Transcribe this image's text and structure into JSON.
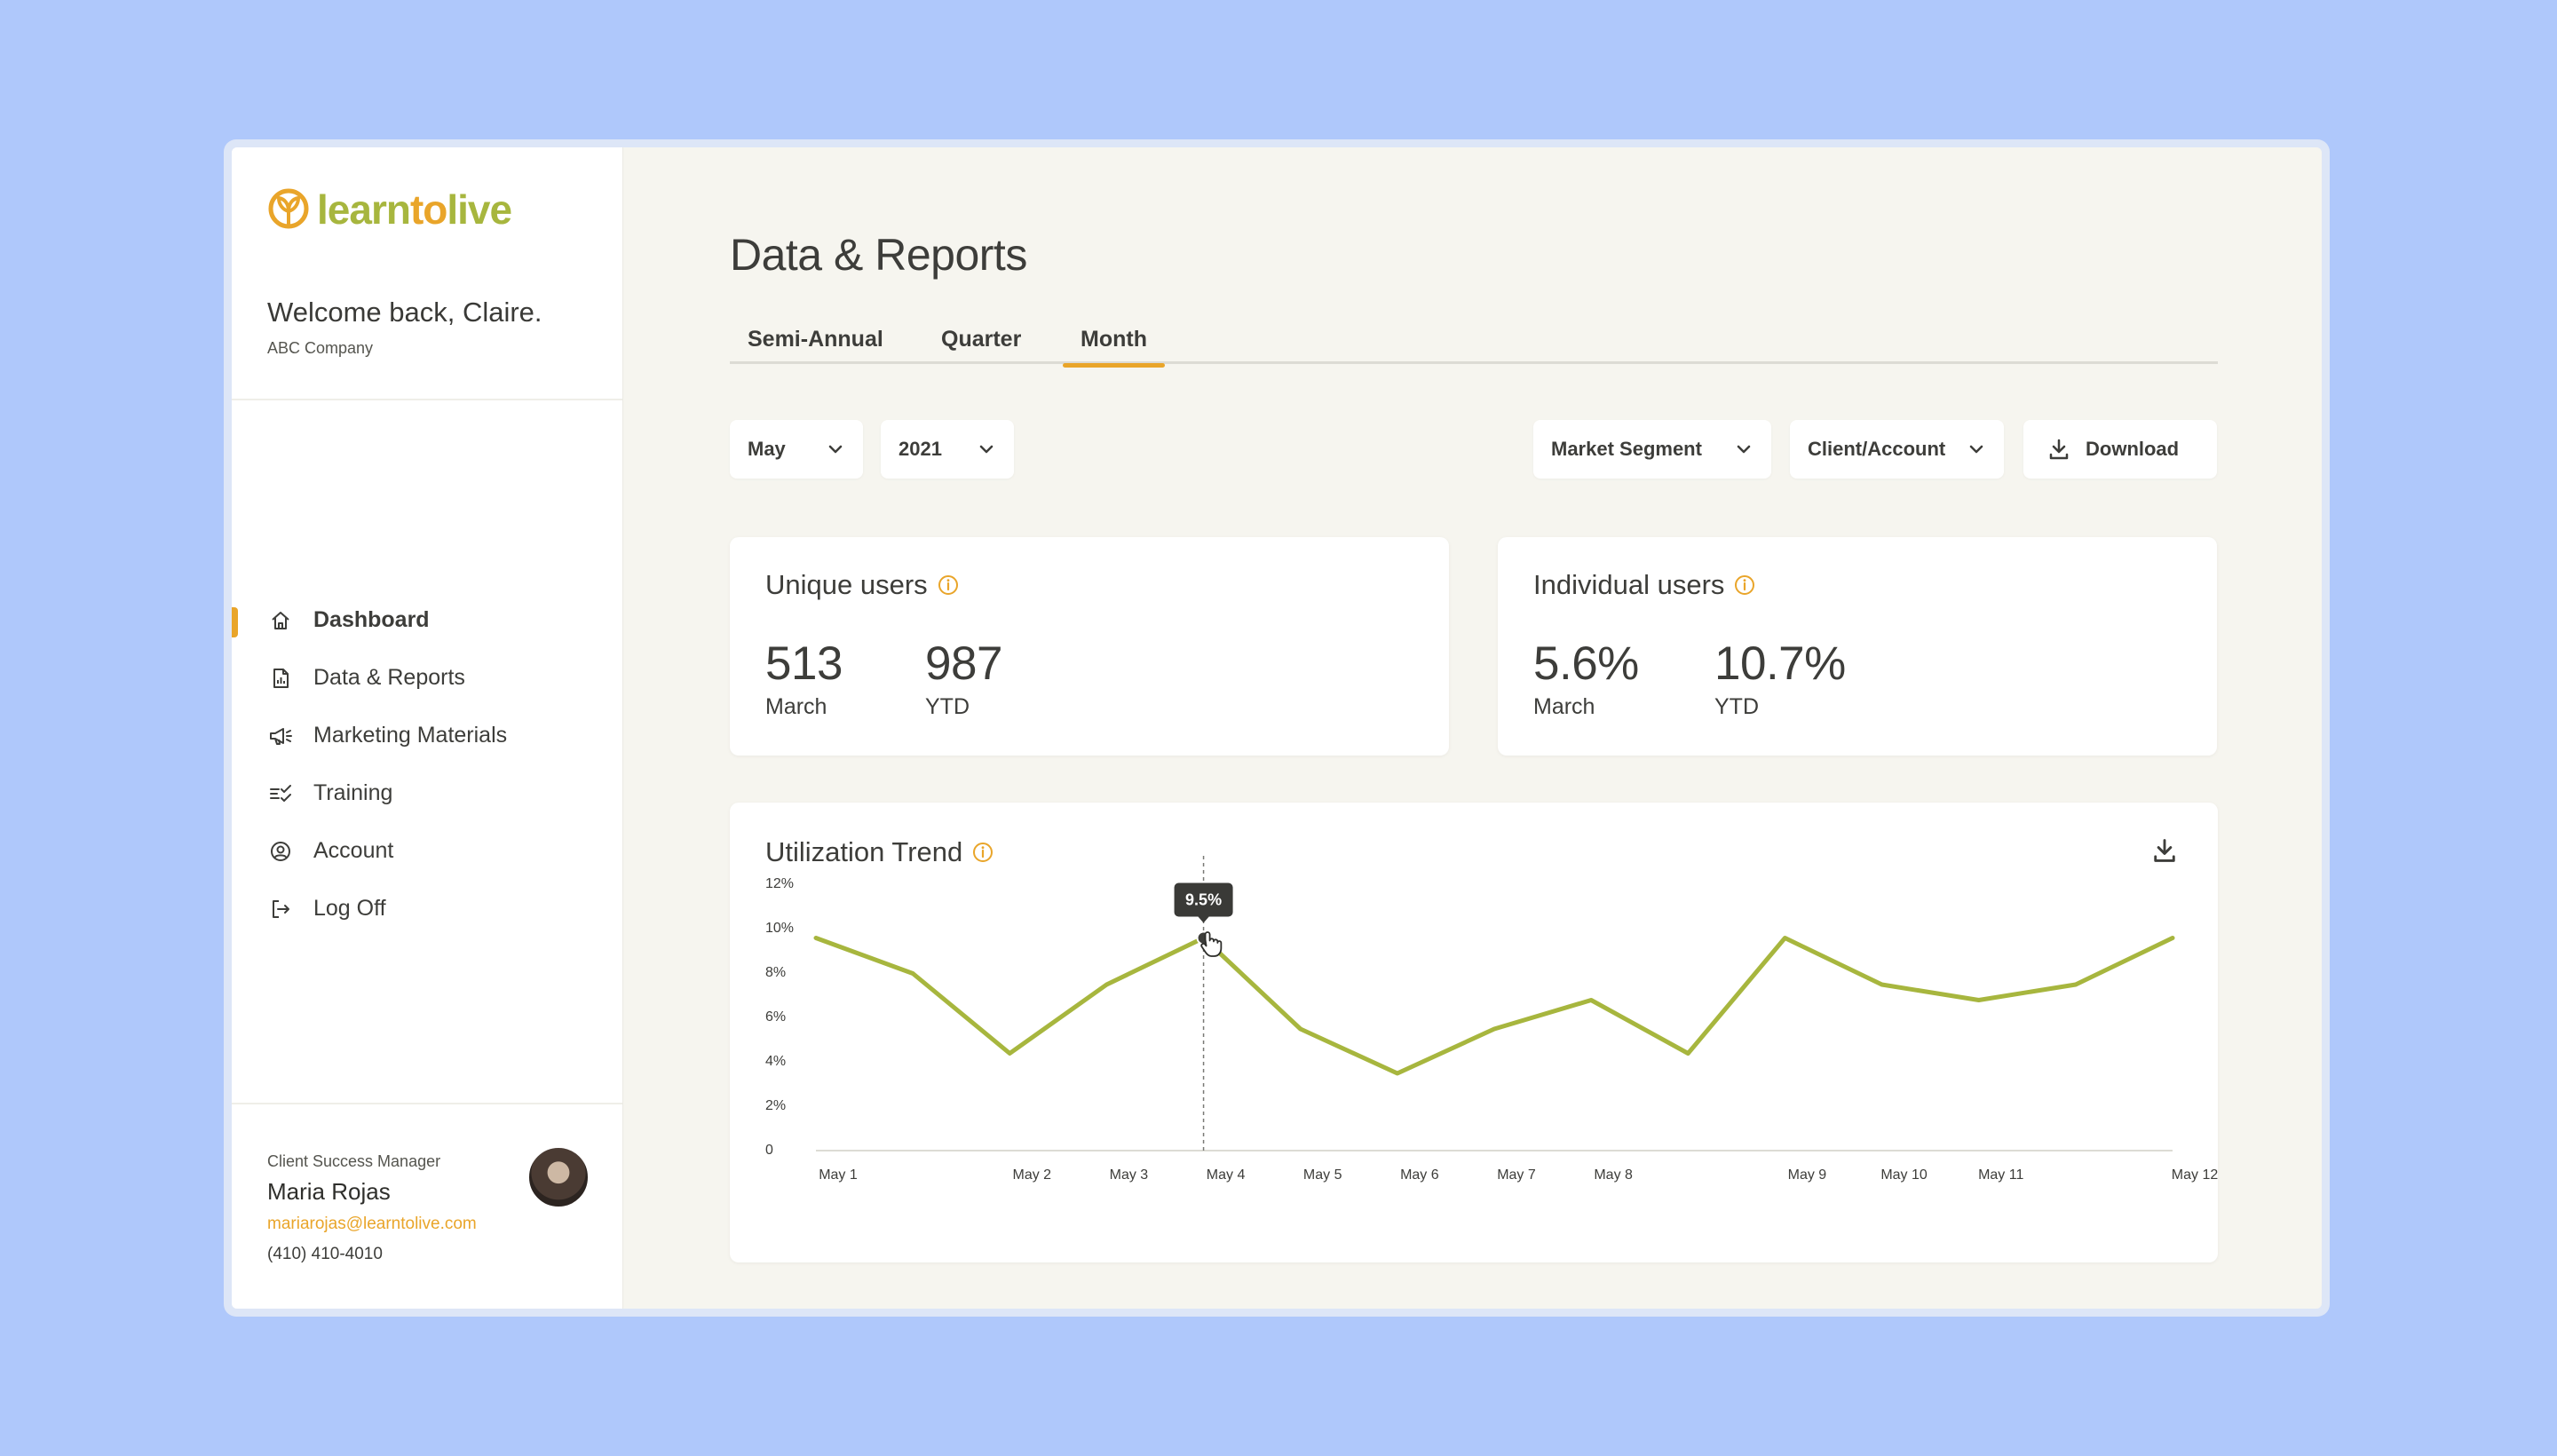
{
  "brand": {
    "name_part1": "learn",
    "name_part2": "to",
    "name_part3": "live",
    "primary_color": "#a7b63e",
    "accent_color": "#e9a52a"
  },
  "welcome": {
    "title": "Welcome back, Claire.",
    "company": "ABC Company"
  },
  "nav": {
    "items": [
      {
        "label": "Dashboard",
        "icon": "home-icon",
        "active": true
      },
      {
        "label": "Data & Reports",
        "icon": "report-icon",
        "active": false
      },
      {
        "label": "Marketing Materials",
        "icon": "megaphone-icon",
        "active": false
      },
      {
        "label": "Training",
        "icon": "checklist-icon",
        "active": false
      },
      {
        "label": "Account",
        "icon": "user-circle-icon",
        "active": false
      },
      {
        "label": "Log Off",
        "icon": "logout-icon",
        "active": false
      }
    ]
  },
  "csm": {
    "role": "Client Success Manager",
    "name": "Maria Rojas",
    "email": "mariarojas@learntolive.com",
    "phone": "(410) 410-4010"
  },
  "page": {
    "title": "Data & Reports",
    "tabs": [
      "Semi-Annual",
      "Quarter",
      "Month"
    ],
    "active_tab": "Month"
  },
  "filters": {
    "month": "May",
    "year": "2021",
    "segment": "Market Segment",
    "client": "Client/Account",
    "download_label": "Download"
  },
  "unique_users": {
    "title": "Unique users",
    "primary_value": "513",
    "primary_label": "March",
    "secondary_value": "987",
    "secondary_label": "YTD"
  },
  "individual_users": {
    "title": "Individual users",
    "primary_value": "5.6%",
    "primary_label": "March",
    "secondary_value": "10.7%",
    "secondary_label": "YTD"
  },
  "utilization": {
    "title": "Utilization Trend"
  },
  "chart_data": {
    "type": "line",
    "title": "Utilization Trend",
    "x": [
      "May 1",
      "",
      "May 2",
      "May 3",
      "May 4",
      "May 5",
      "May 6",
      "May 7",
      "May 8",
      "",
      "May 9",
      "May 10",
      "May 11",
      "",
      "May 12"
    ],
    "x_tick_labels": [
      "May 1",
      "May 2",
      "May 3",
      "May 4",
      "May 5",
      "May 6",
      "May 7",
      "May 8",
      "May 9",
      "May 10",
      "May 11",
      "May 12"
    ],
    "y_tick_labels": [
      "0",
      "2%",
      "4%",
      "6%",
      "8%",
      "10%",
      "12%"
    ],
    "series": [
      {
        "values": [
          9.5,
          7.9,
          4.3,
          7.4,
          9.5,
          5.4,
          3.4,
          5.4,
          6.7,
          4.3,
          9.5,
          7.4,
          6.7,
          7.4,
          9.5
        ]
      }
    ],
    "ylim": [
      0,
      12
    ],
    "line_color": "#a7b63e",
    "highlight": {
      "label": "9.5%",
      "index": 4
    },
    "grid": false
  }
}
